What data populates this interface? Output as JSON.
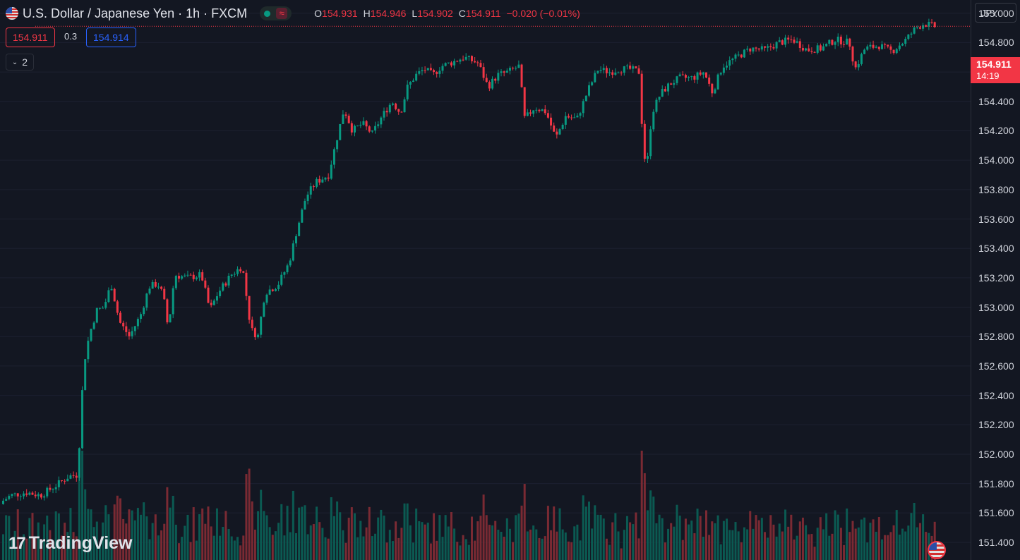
{
  "header": {
    "symbol_title": "U.S. Dollar / Japanese Yen · 1h · FXCM",
    "status_icon": "wave-icon",
    "ohlc": [
      {
        "k": "O",
        "v": "154.931"
      },
      {
        "k": "H",
        "v": "154.946"
      },
      {
        "k": "L",
        "v": "154.902"
      },
      {
        "k": "C",
        "v": "154.911"
      }
    ],
    "change": "−0.020 (−0.01%)"
  },
  "trade": {
    "sell_price": "154.911",
    "spread": "0.3",
    "buy_price": "154.914"
  },
  "indicators_toggle": {
    "count": "2"
  },
  "currency_button": "JPY",
  "last_price_label": {
    "price": "154.911",
    "countdown": "14:19"
  },
  "branding": {
    "logo_text": "TradingView"
  },
  "colors": {
    "background": "#131722",
    "up": "#089981",
    "down": "#f23645",
    "text": "#d1d4dc"
  },
  "chart_data": {
    "type": "candlestick",
    "y_axis": {
      "ticks": [
        "155.000",
        "154.800",
        "154.600",
        "154.400",
        "154.200",
        "154.000",
        "153.800",
        "153.600",
        "153.400",
        "153.200",
        "153.000",
        "152.800",
        "152.600",
        "152.400",
        "152.200",
        "152.000",
        "151.800",
        "151.600",
        "151.400"
      ],
      "range": [
        151.28,
        155.09
      ],
      "position": "right"
    },
    "last_price": 154.911,
    "grid": true,
    "path_anchors": [
      [
        0,
        151.66
      ],
      [
        18,
        151.72
      ],
      [
        40,
        151.74
      ],
      [
        60,
        151.72
      ],
      [
        80,
        151.78
      ],
      [
        100,
        151.85
      ],
      [
        113,
        151.86
      ],
      [
        118,
        152.36
      ],
      [
        124,
        152.7
      ],
      [
        132,
        152.86
      ],
      [
        140,
        152.98
      ],
      [
        150,
        153.0
      ],
      [
        160,
        153.16
      ],
      [
        172,
        152.9
      ],
      [
        186,
        152.8
      ],
      [
        202,
        152.95
      ],
      [
        214,
        153.14
      ],
      [
        226,
        153.16
      ],
      [
        234,
        153.08
      ],
      [
        241,
        152.85
      ],
      [
        250,
        153.22
      ],
      [
        268,
        153.2
      ],
      [
        288,
        153.22
      ],
      [
        300,
        152.98
      ],
      [
        312,
        153.1
      ],
      [
        330,
        153.22
      ],
      [
        346,
        153.28
      ],
      [
        358,
        152.85
      ],
      [
        368,
        152.8
      ],
      [
        378,
        153.1
      ],
      [
        396,
        153.15
      ],
      [
        412,
        153.3
      ],
      [
        424,
        153.54
      ],
      [
        436,
        153.75
      ],
      [
        450,
        153.85
      ],
      [
        468,
        153.9
      ],
      [
        480,
        154.15
      ],
      [
        490,
        154.35
      ],
      [
        502,
        154.2
      ],
      [
        516,
        154.25
      ],
      [
        530,
        154.18
      ],
      [
        544,
        154.3
      ],
      [
        558,
        154.4
      ],
      [
        570,
        154.32
      ],
      [
        580,
        154.5
      ],
      [
        592,
        154.58
      ],
      [
        604,
        154.62
      ],
      [
        616,
        154.58
      ],
      [
        628,
        154.64
      ],
      [
        640,
        154.66
      ],
      [
        660,
        154.7
      ],
      [
        680,
        154.66
      ],
      [
        694,
        154.5
      ],
      [
        708,
        154.58
      ],
      [
        722,
        154.6
      ],
      [
        738,
        154.64
      ],
      [
        746,
        154.28
      ],
      [
        760,
        154.36
      ],
      [
        776,
        154.33
      ],
      [
        790,
        154.15
      ],
      [
        804,
        154.3
      ],
      [
        820,
        154.28
      ],
      [
        836,
        154.48
      ],
      [
        850,
        154.62
      ],
      [
        866,
        154.6
      ],
      [
        880,
        154.62
      ],
      [
        896,
        154.62
      ],
      [
        908,
        154.6
      ],
      [
        912,
        154.25
      ],
      [
        918,
        153.9
      ],
      [
        926,
        154.32
      ],
      [
        938,
        154.45
      ],
      [
        952,
        154.52
      ],
      [
        966,
        154.56
      ],
      [
        984,
        154.56
      ],
      [
        1000,
        154.6
      ],
      [
        1012,
        154.46
      ],
      [
        1026,
        154.64
      ],
      [
        1046,
        154.7
      ],
      [
        1066,
        154.76
      ],
      [
        1086,
        154.75
      ],
      [
        1106,
        154.8
      ],
      [
        1126,
        154.82
      ],
      [
        1146,
        154.75
      ],
      [
        1166,
        154.76
      ],
      [
        1186,
        154.82
      ],
      [
        1206,
        154.8
      ],
      [
        1214,
        154.62
      ],
      [
        1228,
        154.76
      ],
      [
        1248,
        154.78
      ],
      [
        1266,
        154.74
      ],
      [
        1286,
        154.82
      ],
      [
        1300,
        154.9
      ],
      [
        1312,
        154.93
      ],
      [
        1326,
        154.911
      ]
    ],
    "volume_scale_note": "volume bars along bottom"
  }
}
